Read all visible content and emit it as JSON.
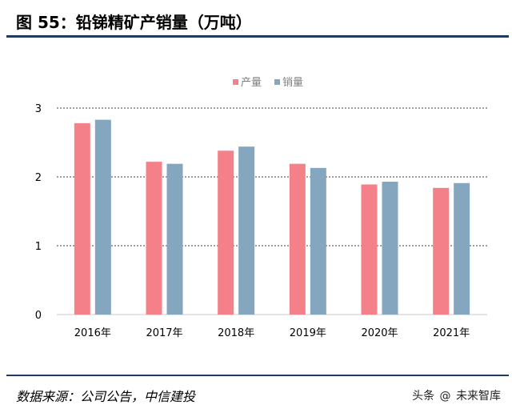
{
  "figure": {
    "title": "图 55：铅锑精矿产销量（万吨）",
    "source": "数据来源：公司公告，中信建投"
  },
  "watermark": {
    "prefix": "头条",
    "icon": "at-icon",
    "name": "未来智库"
  },
  "colors": {
    "production": "#f4818a",
    "sales": "#84a7bf",
    "grid": "#000000",
    "axis": "#c8c8c8",
    "rule": "#1f3a5f"
  },
  "chart_data": {
    "type": "bar",
    "title": "",
    "xlabel": "",
    "ylabel": "",
    "categories": [
      "2016年",
      "2017年",
      "2018年",
      "2019年",
      "2020年",
      "2021年"
    ],
    "series": [
      {
        "name": "产量",
        "values": [
          2.78,
          2.22,
          2.38,
          2.19,
          1.89,
          1.84
        ]
      },
      {
        "name": "销量",
        "values": [
          2.83,
          2.19,
          2.44,
          2.13,
          1.93,
          1.91
        ]
      }
    ],
    "ylim": [
      0,
      3
    ],
    "yticks": [
      "0",
      "1",
      "2",
      "3"
    ],
    "grid": true,
    "legend_position": "top-center"
  }
}
